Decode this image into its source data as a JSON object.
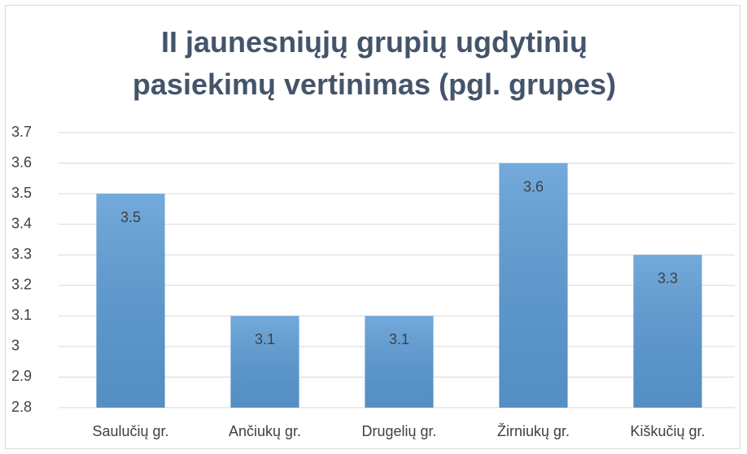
{
  "chart_data": {
    "type": "bar",
    "title": "II jaunesniųjų grupių ugdytinių pasiekimų vertinimas (pgl. grupes)",
    "categories": [
      "Saulučių gr.",
      "Ančiukų gr.",
      "Drugelių gr.",
      "Žirniukų gr.",
      "Kiškučių gr."
    ],
    "values": [
      3.5,
      3.1,
      3.1,
      3.6,
      3.3
    ],
    "color": "#5b9bd5",
    "ylim": [
      2.8,
      3.7
    ],
    "yticks": [
      2.8,
      2.9,
      3,
      3.1,
      3.2,
      3.3,
      3.4,
      3.5,
      3.6,
      3.7
    ],
    "grid": true
  }
}
